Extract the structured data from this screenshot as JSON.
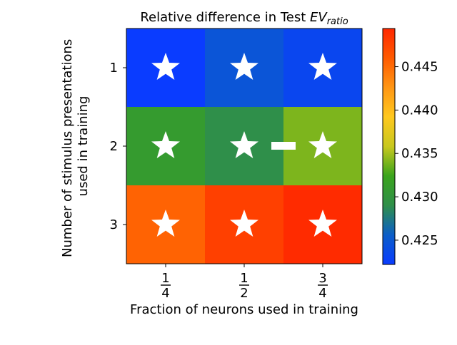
{
  "chart_data": {
    "type": "heatmap",
    "title_prefix": "Relative difference in Test ",
    "title_math": "EV",
    "title_math_sub": "ratio",
    "xlabel": "Fraction of neurons used in training",
    "ylabel_lines": [
      "Number of stimulus presentations",
      "used in training"
    ],
    "x_ticks": [
      {
        "num": "1",
        "den": "4"
      },
      {
        "num": "1",
        "den": "2"
      },
      {
        "num": "3",
        "den": "4"
      }
    ],
    "y_ticks": [
      "1",
      "2",
      "3"
    ],
    "values": [
      [
        0.4222,
        0.4247,
        0.4232
      ],
      [
        0.431,
        0.429,
        0.434
      ],
      [
        0.4455,
        0.4478,
        0.4492
      ]
    ],
    "markers": [
      [
        "star",
        "star",
        "star"
      ],
      [
        "star",
        "star",
        "star"
      ],
      [
        "star",
        "star",
        "star"
      ]
    ],
    "extra_marker": {
      "type": "dash",
      "row": 1,
      "between_cols": [
        1,
        2
      ]
    },
    "colorbar": {
      "range": [
        0.4222,
        0.4494
      ],
      "ticks": [
        0.425,
        0.43,
        0.435,
        0.44,
        0.445
      ],
      "tick_labels": [
        "0.425",
        "0.430",
        "0.435",
        "0.440",
        "0.445"
      ]
    },
    "colors": {
      "stops": [
        "#0a3cff",
        "#0b5ec8",
        "#2f8f4a",
        "#3aa41c",
        "#c8c81e",
        "#ffc81e",
        "#ff9614",
        "#ff5a00",
        "#ff2800"
      ],
      "marker": "#ffffff"
    }
  }
}
